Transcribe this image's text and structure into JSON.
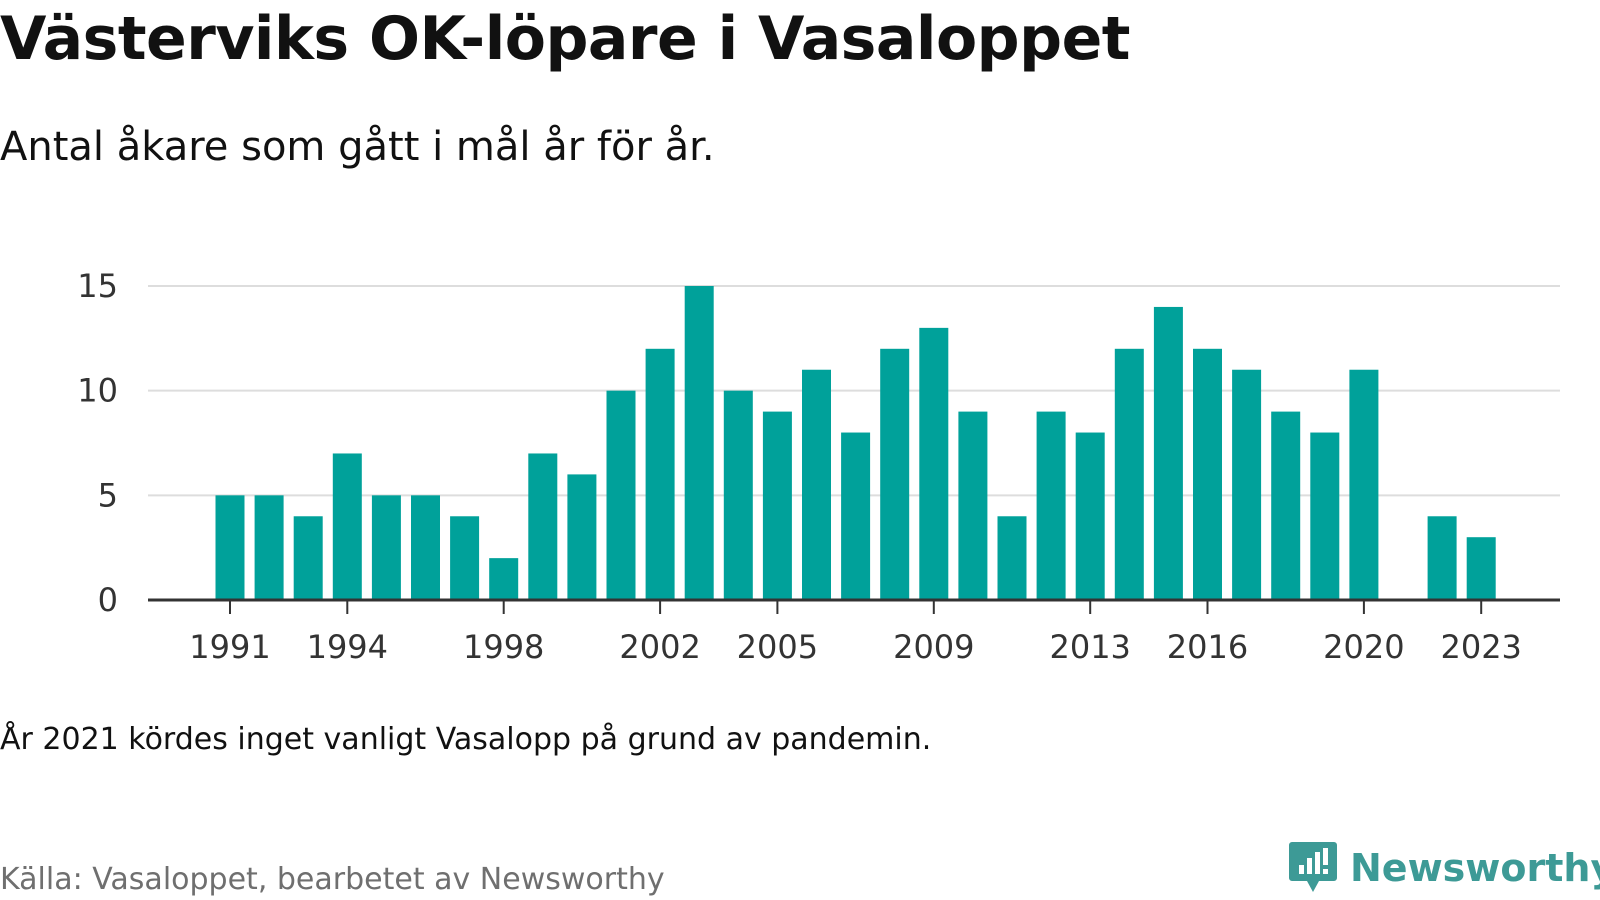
{
  "title": "Västerviks OK-löpare i Vasaloppet",
  "subtitle": "Antal åkare som gått i mål år för år.",
  "note": "År 2021 kördes inget vanligt Vasalopp på grund av pandemin.",
  "source": "Källa: Vasaloppet, bearbetet av Newsworthy",
  "brand": {
    "name": "Newsworthy",
    "icon": "newsworthy-logo-icon",
    "color": "#3d9a96"
  },
  "colors": {
    "bar": "#00a19a",
    "grid": "#dddddd",
    "axis": "#333333"
  },
  "chart_data": {
    "type": "bar",
    "title": "Västerviks OK-löpare i Vasaloppet",
    "xlabel": "",
    "ylabel": "",
    "x": [
      1991,
      1992,
      1993,
      1994,
      1995,
      1996,
      1997,
      1998,
      1999,
      2000,
      2001,
      2002,
      2003,
      2004,
      2005,
      2006,
      2007,
      2008,
      2009,
      2010,
      2011,
      2012,
      2013,
      2014,
      2015,
      2016,
      2017,
      2018,
      2019,
      2020,
      2022,
      2023
    ],
    "values": [
      5,
      5,
      4,
      7,
      5,
      5,
      4,
      2,
      7,
      6,
      10,
      12,
      15,
      10,
      9,
      11,
      8,
      12,
      13,
      9,
      4,
      9,
      8,
      12,
      14,
      12,
      11,
      9,
      8,
      11,
      4,
      3
    ],
    "ylim": [
      0,
      15
    ],
    "yticks": [
      "0",
      "5",
      "10",
      "15"
    ],
    "xtick_labels": [
      "1991",
      "1994",
      "1998",
      "2002",
      "2005",
      "2009",
      "2013",
      "2016",
      "2020",
      "2023"
    ],
    "grid": true,
    "legend": "none"
  }
}
